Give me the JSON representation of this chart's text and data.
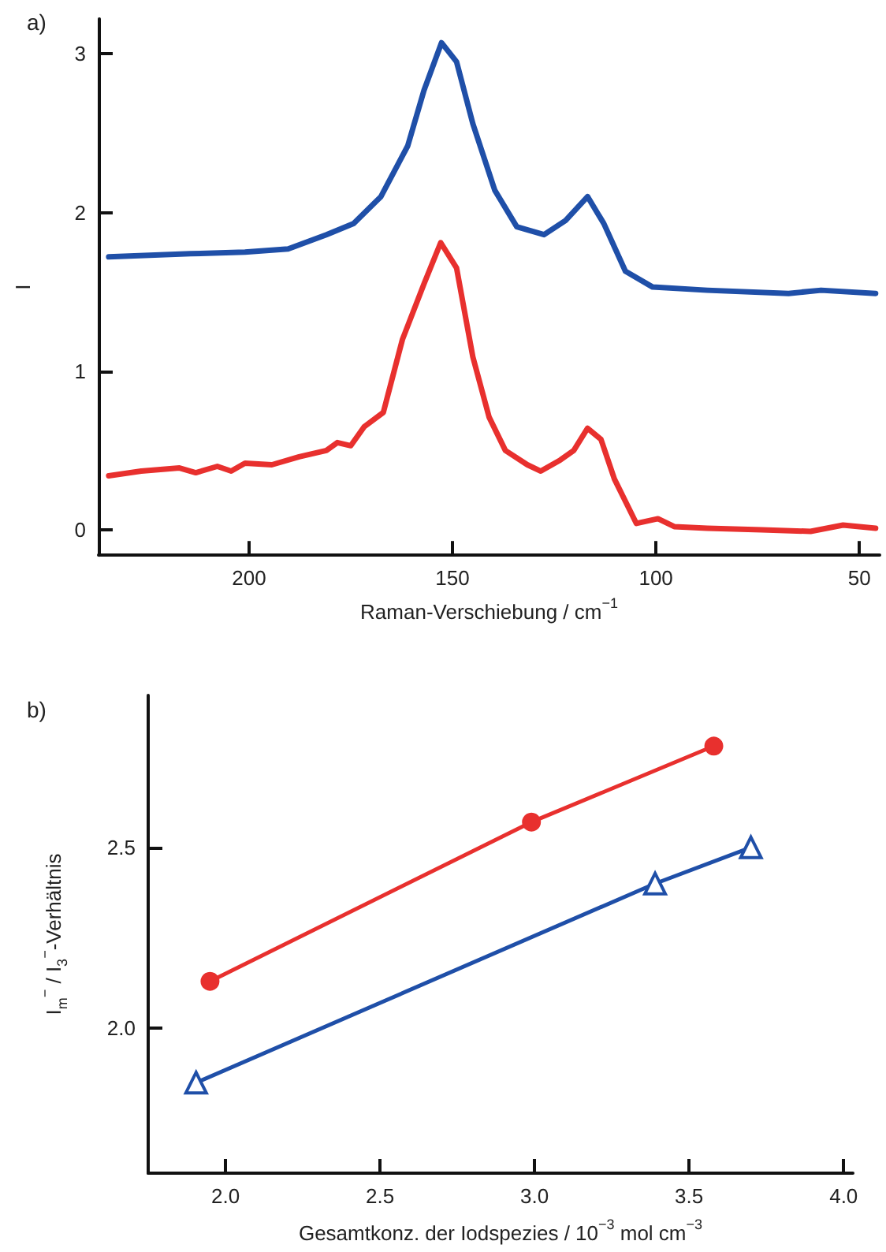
{
  "chart_data": [
    {
      "type": "line",
      "title": "a)",
      "xlabel": "Raman-Verschiebung / cm$^{−1}$",
      "ylabel": "I",
      "marker": "none",
      "xlim": [
        237,
        45
      ],
      "ylim": [
        -0.16,
        3.22
      ],
      "xticks": [
        200,
        150,
        100,
        50
      ],
      "yticks": [
        0,
        1,
        2,
        3
      ],
      "series": [
        {
          "color": "#1f4fa8",
          "x": [
            234.5,
            214.4,
            201,
            190.4,
            181,
            174.3,
            167.6,
            161,
            157,
            152.7,
            149,
            145,
            139.6,
            134.2,
            127.5,
            122.2,
            116.8,
            112.8,
            107.5,
            100.8,
            87.4,
            67.4,
            59.4,
            46
          ],
          "values": [
            1.72,
            1.74,
            1.75,
            1.77,
            1.86,
            1.93,
            2.1,
            2.42,
            2.77,
            3.07,
            2.95,
            2.56,
            2.14,
            1.91,
            1.86,
            1.95,
            2.1,
            1.93,
            1.63,
            1.53,
            1.51,
            1.49,
            1.51,
            1.49
          ]
        },
        {
          "color": "#e8302e",
          "x": [
            234.5,
            226.5,
            217.1,
            213.1,
            207.8,
            204.4,
            201,
            194.4,
            187.7,
            181,
            178.3,
            175,
            171.7,
            167,
            162.3,
            157,
            152.9,
            149,
            145,
            141,
            137,
            131.6,
            128.3,
            123.5,
            120.2,
            116.8,
            113.5,
            110.2,
            104.8,
            99.5,
            95.5,
            87.4,
            74,
            62,
            54,
            46
          ],
          "values": [
            0.34,
            0.37,
            0.39,
            0.36,
            0.4,
            0.37,
            0.42,
            0.41,
            0.46,
            0.5,
            0.55,
            0.53,
            0.65,
            0.74,
            1.2,
            1.55,
            1.81,
            1.65,
            1.09,
            0.71,
            0.5,
            0.41,
            0.37,
            0.44,
            0.5,
            0.64,
            0.57,
            0.32,
            0.04,
            0.07,
            0.02,
            0.01,
            0,
            -0.01,
            0.03,
            0.01
          ]
        }
      ]
    },
    {
      "type": "line",
      "title": "b)",
      "xlabel": "Gesamtkonz. der Iodspezies / 10$^{−3}$ mol cm$^{−3}$",
      "ylabel": "I$_{m}$$^{−}$ / I$_{3}$$^{−}$-Verhältnis",
      "xlim": [
        1.75,
        4.03
      ],
      "ylim": [
        1.6,
        2.92
      ],
      "xticks": [
        {
          "value": 2,
          "label": "2.0"
        },
        2.5,
        {
          "value": 3,
          "label": "3.0"
        },
        3.5,
        {
          "value": 4,
          "label": "4.0"
        }
      ],
      "yticks": [
        {
          "value": 2,
          "label": "2.0"
        },
        2.5
      ],
      "series": [
        {
          "color": "#e8302e",
          "marker": "circle",
          "x": [
            1.95,
            2.99,
            3.58
          ],
          "values": [
            2.13,
            2.57,
            2.78
          ]
        },
        {
          "color": "#1f4fa8",
          "marker": "triangle",
          "x": [
            1.905,
            3.39,
            3.7
          ],
          "values": [
            1.85,
            2.4,
            2.5
          ]
        }
      ]
    }
  ]
}
